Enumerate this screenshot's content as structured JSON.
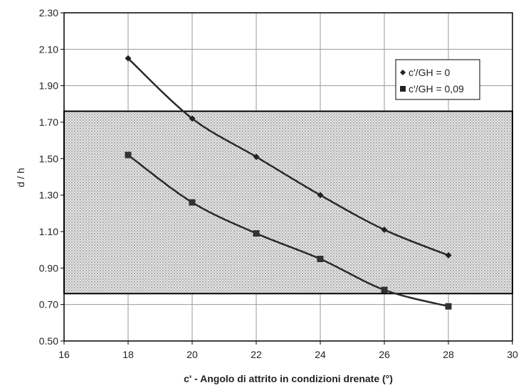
{
  "chart_data": {
    "type": "line",
    "xlabel": "c' - Angolo di attrito in condizioni drenate (°)",
    "ylabel": "d / h",
    "xlim": [
      16,
      30
    ],
    "ylim": [
      0.5,
      2.3
    ],
    "x_ticks": [
      "16",
      "18",
      "20",
      "22",
      "24",
      "26",
      "28",
      "30"
    ],
    "y_ticks": [
      "0.50",
      "0.70",
      "0.90",
      "1.10",
      "1.30",
      "1.50",
      "1.70",
      "1.90",
      "2.10",
      "2.30"
    ],
    "grid": "vertical and horizontal",
    "legend_position": "top-right",
    "band": {
      "y_from": 0.76,
      "y_to": 1.76,
      "fill": "dotted"
    },
    "series": [
      {
        "name": "c'/GH = 0",
        "marker": "diamond",
        "x": [
          18,
          20,
          22,
          24,
          26,
          28
        ],
        "y": [
          2.05,
          1.72,
          1.51,
          1.3,
          1.11,
          0.97
        ]
      },
      {
        "name": "c'/GH = 0,09",
        "marker": "square",
        "x": [
          18,
          20,
          22,
          24,
          26,
          28
        ],
        "y": [
          1.52,
          1.26,
          1.09,
          0.95,
          0.78,
          0.69
        ]
      }
    ]
  }
}
